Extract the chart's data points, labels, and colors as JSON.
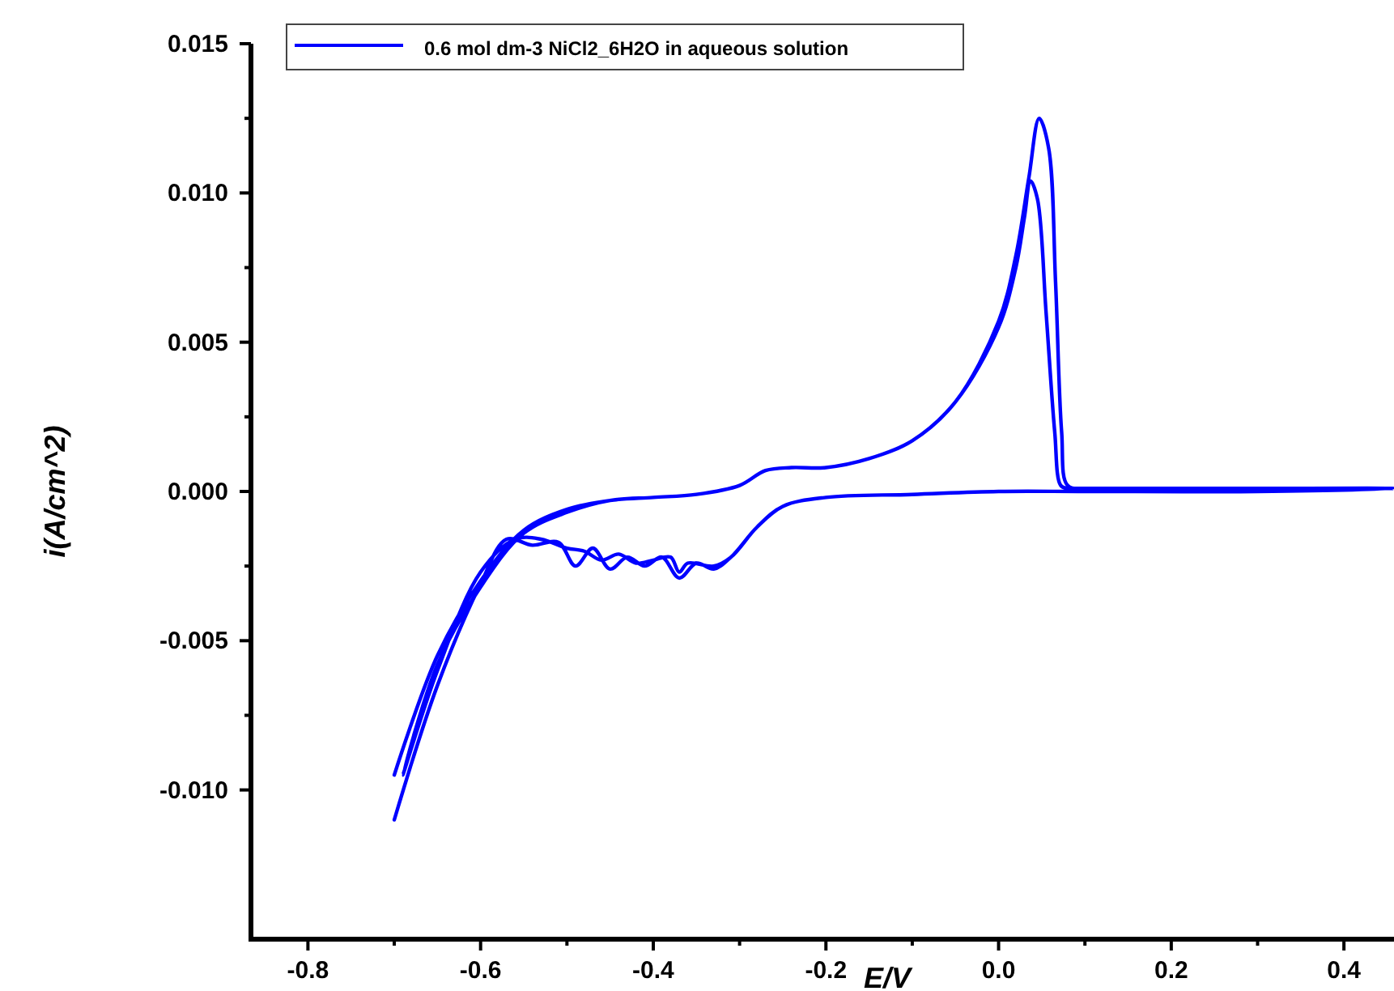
{
  "chart_data": {
    "type": "line",
    "xlabel": "E/V",
    "ylabel": "i(A/cm^2)",
    "xlim": [
      -0.866,
      0.458
    ],
    "ylim": [
      -0.015,
      0.015
    ],
    "xticks": [
      -0.8,
      -0.6,
      -0.4,
      -0.2,
      {
        "value": 0,
        "label": "0.0"
      },
      0.2,
      0.4
    ],
    "yticks": [
      {
        "value": -0.01,
        "label": "-0.010"
      },
      {
        "value": -0.005,
        "label": "-0.005"
      },
      {
        "value": 0,
        "label": "0.000"
      },
      {
        "value": 0.005,
        "label": "0.005"
      },
      {
        "value": 0.01,
        "label": "0.010"
      },
      0.015
    ],
    "legend": "top left",
    "marker": "none",
    "line_style": "solid",
    "grid": false,
    "series": [
      {
        "name": "0.6 mol dm-3 NiCl2_6H2O in aqueous solution",
        "color": "#0000ff",
        "x": [
          -0.7,
          -0.65,
          -0.6,
          -0.55,
          -0.5,
          -0.45,
          -0.4,
          -0.35,
          -0.3,
          -0.27,
          -0.24,
          -0.2,
          -0.15,
          -0.1,
          -0.05,
          0,
          0.02,
          0.03,
          0.037,
          0.045,
          0.055,
          0.065,
          0.072,
          0.08,
          0.1,
          0.2,
          0.3,
          0.458,
          0.3,
          0.1,
          0,
          -0.1,
          -0.2,
          -0.25,
          -0.28,
          -0.31,
          -0.33,
          -0.36,
          -0.37,
          -0.38,
          -0.4,
          -0.42,
          -0.44,
          -0.46,
          -0.48,
          -0.5,
          -0.53,
          -0.56,
          -0.6,
          -0.65,
          -0.69,
          -0.65,
          -0.6,
          -0.55,
          -0.5,
          -0.45,
          -0.4,
          -0.35,
          -0.3,
          -0.27,
          -0.24,
          -0.2,
          -0.15,
          -0.1,
          -0.05,
          0,
          0.02,
          0.035,
          0.047,
          0.058,
          0.066,
          0.073,
          0.08,
          0.1,
          0.2,
          0.3,
          0.458,
          0.3,
          0.1,
          0,
          -0.1,
          -0.2,
          -0.25,
          -0.28,
          -0.31,
          -0.33,
          -0.35,
          -0.37,
          -0.39,
          -0.41,
          -0.43,
          -0.45,
          -0.47,
          -0.49,
          -0.51,
          -0.54,
          -0.57,
          -0.6,
          -0.65,
          -0.7
        ],
        "values": [
          -0.0095,
          -0.0055,
          -0.003,
          -0.0013,
          -0.0006,
          -0.0003,
          -0.0002,
          -0.0001,
          0.0002,
          0.0007,
          0.0008,
          0.0008,
          0.0011,
          0.0017,
          0.003,
          0.0055,
          0.0075,
          0.0092,
          0.0104,
          0.0098,
          0.006,
          0.002,
          0.0002,
          0.0001,
          0.0001,
          0.0001,
          0.0001,
          0.0001,
          0,
          0,
          0,
          -0.0001,
          -0.0002,
          -0.0005,
          -0.0012,
          -0.0022,
          -0.0025,
          -0.0024,
          -0.0027,
          -0.0022,
          -0.0023,
          -0.0024,
          -0.0021,
          -0.0023,
          -0.002,
          -0.0019,
          -0.0016,
          -0.0016,
          -0.0027,
          -0.006,
          -0.0095,
          -0.0058,
          -0.0032,
          -0.0014,
          -0.0007,
          -0.0003,
          -0.0002,
          -0.0001,
          0.0002,
          0.0007,
          0.0008,
          0.0008,
          0.0011,
          0.0017,
          0.003,
          0.0057,
          0.0079,
          0.0105,
          0.0125,
          0.0115,
          0.007,
          0.002,
          0.0002,
          0.0001,
          0.0001,
          0.0001,
          0.0001,
          0,
          0,
          0,
          -0.0001,
          -0.0002,
          -0.0005,
          -0.0012,
          -0.0022,
          -0.0026,
          -0.0024,
          -0.0029,
          -0.0022,
          -0.0025,
          -0.0022,
          -0.0026,
          -0.0019,
          -0.0025,
          -0.0017,
          -0.0018,
          -0.0016,
          -0.0031,
          -0.0065,
          -0.011
        ]
      }
    ]
  }
}
